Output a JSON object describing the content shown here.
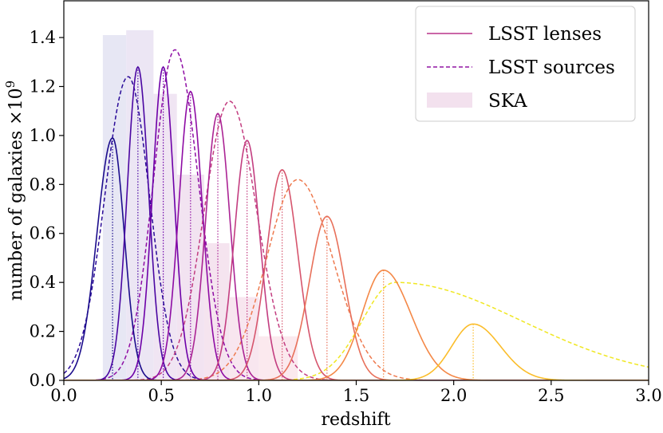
{
  "chart_data": {
    "type": "line",
    "xlabel": "redshift",
    "ylabel": "number of galaxies ×10",
    "ylabel_exponent": "9",
    "xlim": [
      0.0,
      3.0
    ],
    "ylim": [
      0.0,
      1.55
    ],
    "xticks": [
      0.0,
      0.5,
      1.0,
      1.5,
      2.0,
      2.5,
      3.0
    ],
    "xtick_labels": [
      "0.0",
      "0.5",
      "1.0",
      "1.5",
      "2.0",
      "2.5",
      "3.0"
    ],
    "yticks": [
      0.0,
      0.2,
      0.4,
      0.6,
      0.8,
      1.0,
      1.2,
      1.4
    ],
    "ytick_labels": [
      "0.0",
      "0.2",
      "0.4",
      "0.6",
      "0.8",
      "1.0",
      "1.2",
      "1.4"
    ],
    "legend": {
      "position": "top-right",
      "entries": [
        {
          "label": "LSST lenses",
          "style": "solid",
          "color": "#b8338a"
        },
        {
          "label": "LSST sources",
          "style": "dashed",
          "color": "#9015a3"
        },
        {
          "label": "SKA",
          "style": "patch",
          "color": "#f3e1ee"
        }
      ]
    },
    "ska_bins": [
      {
        "x0": 0.2,
        "x1": 0.32,
        "value": 1.41,
        "color": "#e7e7f4"
      },
      {
        "x0": 0.32,
        "x1": 0.46,
        "value": 1.43,
        "color": "#ece6f4"
      },
      {
        "x0": 0.46,
        "x1": 0.58,
        "value": 1.17,
        "color": "#f0e5f3"
      },
      {
        "x0": 0.58,
        "x1": 0.72,
        "value": 0.84,
        "color": "#f2e3f1"
      },
      {
        "x0": 0.72,
        "x1": 0.85,
        "value": 0.56,
        "color": "#f5e4ef"
      },
      {
        "x0": 0.85,
        "x1": 1.0,
        "value": 0.34,
        "color": "#f8e6ef"
      },
      {
        "x0": 1.0,
        "x1": 1.2,
        "value": 0.18,
        "color": "#fbe9ee"
      }
    ],
    "lens_series": [
      {
        "name": "lens bin 1",
        "mean": 0.25,
        "peak": 0.99,
        "sigma_left": 0.08,
        "sigma_right": 0.06,
        "color": "#1b0c8c"
      },
      {
        "name": "lens bin 2",
        "mean": 0.38,
        "peak": 1.28,
        "sigma_left": 0.055,
        "sigma_right": 0.055,
        "color": "#4a06a2"
      },
      {
        "name": "lens bin 3",
        "mean": 0.51,
        "peak": 1.28,
        "sigma_left": 0.055,
        "sigma_right": 0.055,
        "color": "#6d00a8"
      },
      {
        "name": "lens bin 4",
        "mean": 0.65,
        "peak": 1.18,
        "sigma_left": 0.06,
        "sigma_right": 0.06,
        "color": "#8e0ca4"
      },
      {
        "name": "lens bin 5",
        "mean": 0.79,
        "peak": 1.09,
        "sigma_left": 0.062,
        "sigma_right": 0.062,
        "color": "#ab2494"
      },
      {
        "name": "lens bin 6",
        "mean": 0.94,
        "peak": 0.98,
        "sigma_left": 0.065,
        "sigma_right": 0.065,
        "color": "#c33d80"
      },
      {
        "name": "lens bin 7",
        "mean": 1.12,
        "peak": 0.86,
        "sigma_left": 0.08,
        "sigma_right": 0.08,
        "color": "#d6556d"
      },
      {
        "name": "lens bin 8",
        "mean": 1.35,
        "peak": 0.67,
        "sigma_left": 0.09,
        "sigma_right": 0.09,
        "color": "#e8705a"
      },
      {
        "name": "lens bin 9",
        "mean": 1.64,
        "peak": 0.45,
        "sigma_left": 0.11,
        "sigma_right": 0.14,
        "color": "#f48847"
      },
      {
        "name": "lens bin 10",
        "mean": 2.1,
        "peak": 0.23,
        "sigma_left": 0.11,
        "sigma_right": 0.14,
        "color": "#fbbd2b"
      }
    ],
    "source_series": [
      {
        "name": "source bin 1",
        "mean": 0.33,
        "peak": 1.24,
        "sigma_left": 0.12,
        "sigma_right": 0.11,
        "color": "#2a0a98"
      },
      {
        "name": "source bin 2",
        "mean": 0.57,
        "peak": 1.35,
        "sigma_left": 0.11,
        "sigma_right": 0.12,
        "color": "#8e0ca4"
      },
      {
        "name": "source bin 3",
        "mean": 0.85,
        "peak": 1.14,
        "sigma_left": 0.13,
        "sigma_right": 0.14,
        "color": "#c33d80"
      },
      {
        "name": "source bin 4",
        "mean": 1.2,
        "peak": 0.82,
        "sigma_left": 0.16,
        "sigma_right": 0.18,
        "color": "#ee7a4f"
      },
      {
        "name": "source bin 5",
        "mean": 1.7,
        "peak": 0.4,
        "sigma_left": 0.17,
        "sigma_right": 0.65,
        "color": "#f0e722"
      }
    ]
  }
}
